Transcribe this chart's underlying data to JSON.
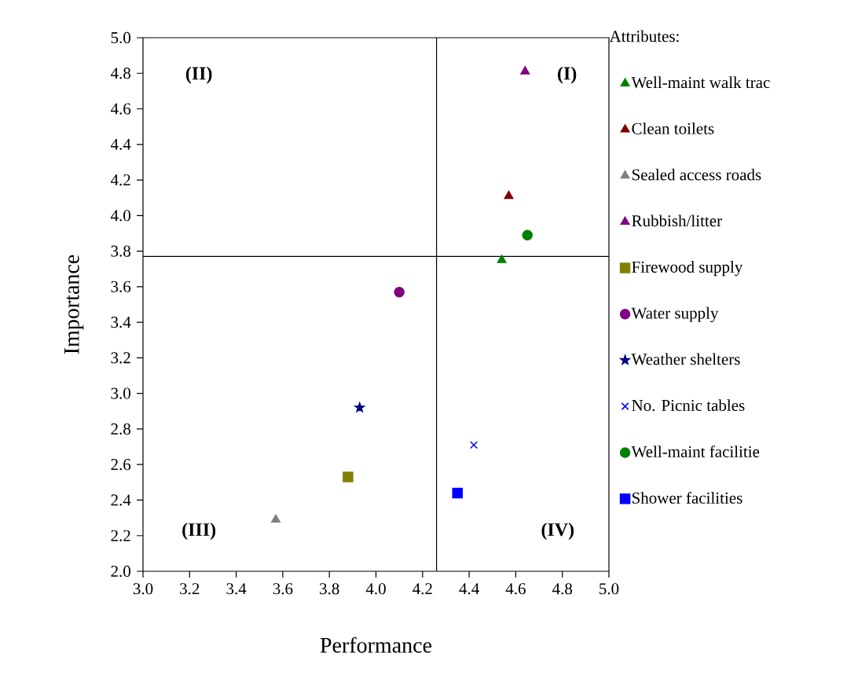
{
  "chart_data": {
    "type": "scatter",
    "xlabel": "Performance",
    "ylabel": "Importance",
    "legend_title": "Attributes:",
    "legend": "right",
    "xlim": [
      3.0,
      5.0
    ],
    "ylim": [
      2.0,
      5.0
    ],
    "grid": false,
    "xticks": [
      {
        "value": 3.0,
        "label": "3.0"
      },
      {
        "value": 3.2,
        "label": "3.2"
      },
      {
        "value": 3.4,
        "label": "3.4"
      },
      {
        "value": 3.6,
        "label": "3.6"
      },
      {
        "value": 3.8,
        "label": "3.8"
      },
      {
        "value": 4.0,
        "label": "4.0"
      },
      {
        "value": 4.2,
        "label": "4.2"
      },
      {
        "value": 4.4,
        "label": "4.4"
      },
      {
        "value": 4.6,
        "label": "4.6"
      },
      {
        "value": 4.8,
        "label": "4.8"
      },
      {
        "value": 5.0,
        "label": "5.0"
      }
    ],
    "yticks": [
      {
        "value": 2.0,
        "label": "2.0"
      },
      {
        "value": 2.2,
        "label": "2.2"
      },
      {
        "value": 2.4,
        "label": "2.4"
      },
      {
        "value": 2.6,
        "label": "2.6"
      },
      {
        "value": 2.8,
        "label": "2.8"
      },
      {
        "value": 3.0,
        "label": "3.0"
      },
      {
        "value": 3.2,
        "label": "3.2"
      },
      {
        "value": 3.4,
        "label": "3.4"
      },
      {
        "value": 3.6,
        "label": "3.6"
      },
      {
        "value": 3.8,
        "label": "3.8"
      },
      {
        "value": 4.0,
        "label": "4.0"
      },
      {
        "value": 4.2,
        "label": "4.2"
      },
      {
        "value": 4.4,
        "label": "4.4"
      },
      {
        "value": 4.6,
        "label": "4.6"
      },
      {
        "value": 4.8,
        "label": "4.8"
      },
      {
        "value": 5.0,
        "label": "5.0"
      }
    ],
    "ref_lines": [
      {
        "axis": "x",
        "value": 4.26,
        "color": "#000000"
      },
      {
        "axis": "y",
        "value": 3.77,
        "color": "#000000"
      }
    ],
    "annotations": [
      "(II)",
      "(I)",
      "(III)",
      "(IV)"
    ],
    "series": [
      {
        "name": "Well-maint walk trac",
        "color": "#008000",
        "marker": "triangle",
        "x": [
          4.54
        ],
        "values": [
          3.75
        ]
      },
      {
        "name": "Clean toilets",
        "color": "#800000",
        "marker": "triangle",
        "x": [
          4.57
        ],
        "values": [
          4.11
        ]
      },
      {
        "name": "Sealed access roads",
        "color": "#808080",
        "marker": "triangle",
        "x": [
          3.57
        ],
        "values": [
          2.29
        ]
      },
      {
        "name": "Rubbish/litter",
        "color": "#800080",
        "marker": "triangle",
        "x": [
          4.64
        ],
        "values": [
          4.81
        ]
      },
      {
        "name": "Firewood supply",
        "color": "#808000",
        "marker": "square",
        "x": [
          3.88
        ],
        "values": [
          2.53
        ]
      },
      {
        "name": "Water supply",
        "color": "#800080",
        "marker": "circle",
        "x": [
          4.1
        ],
        "values": [
          3.57
        ]
      },
      {
        "name": "Weather shelters",
        "color": "#000080",
        "marker": "star",
        "x": [
          3.93
        ],
        "values": [
          2.92
        ]
      },
      {
        "name": "No. Picnic tables",
        "color": "#0000ff",
        "marker": "cross",
        "x": [
          4.42
        ],
        "values": [
          2.71
        ]
      },
      {
        "name": "Well-maint facilitie",
        "color": "#008000",
        "marker": "circle",
        "x": [
          4.65
        ],
        "values": [
          3.89
        ]
      },
      {
        "name": "Shower facilities",
        "color": "#0000ff",
        "marker": "square",
        "x": [
          4.35
        ],
        "values": [
          2.44
        ]
      }
    ]
  }
}
